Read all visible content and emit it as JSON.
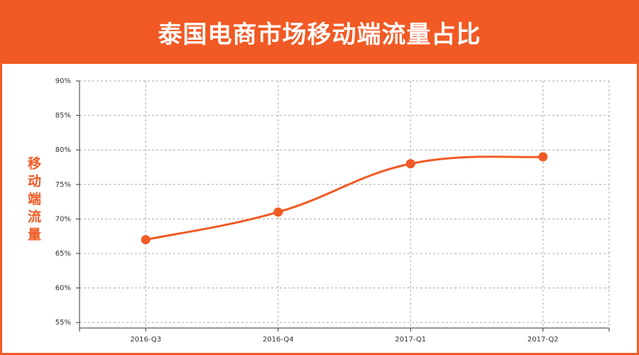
{
  "chart_data": {
    "type": "line",
    "title": "泰国电商市场移动端流量占比",
    "y_label": "移动端流量",
    "categories": [
      "2016-Q3",
      "2016-Q4",
      "2017-Q1",
      "2017-Q2"
    ],
    "values": [
      67,
      71,
      78,
      79
    ],
    "color": "#f15a24",
    "ylim": [
      54.2,
      90
    ],
    "yticks": [
      {
        "value": 55,
        "label": "55%"
      },
      {
        "value": 60,
        "label": "60%"
      },
      {
        "value": 65,
        "label": "65%"
      },
      {
        "value": 70,
        "label": "70%"
      },
      {
        "value": 75,
        "label": "75%"
      },
      {
        "value": 80,
        "label": "80%"
      },
      {
        "value": 85,
        "label": "85%"
      },
      {
        "value": 90,
        "label": "90%"
      }
    ],
    "grid": true
  }
}
